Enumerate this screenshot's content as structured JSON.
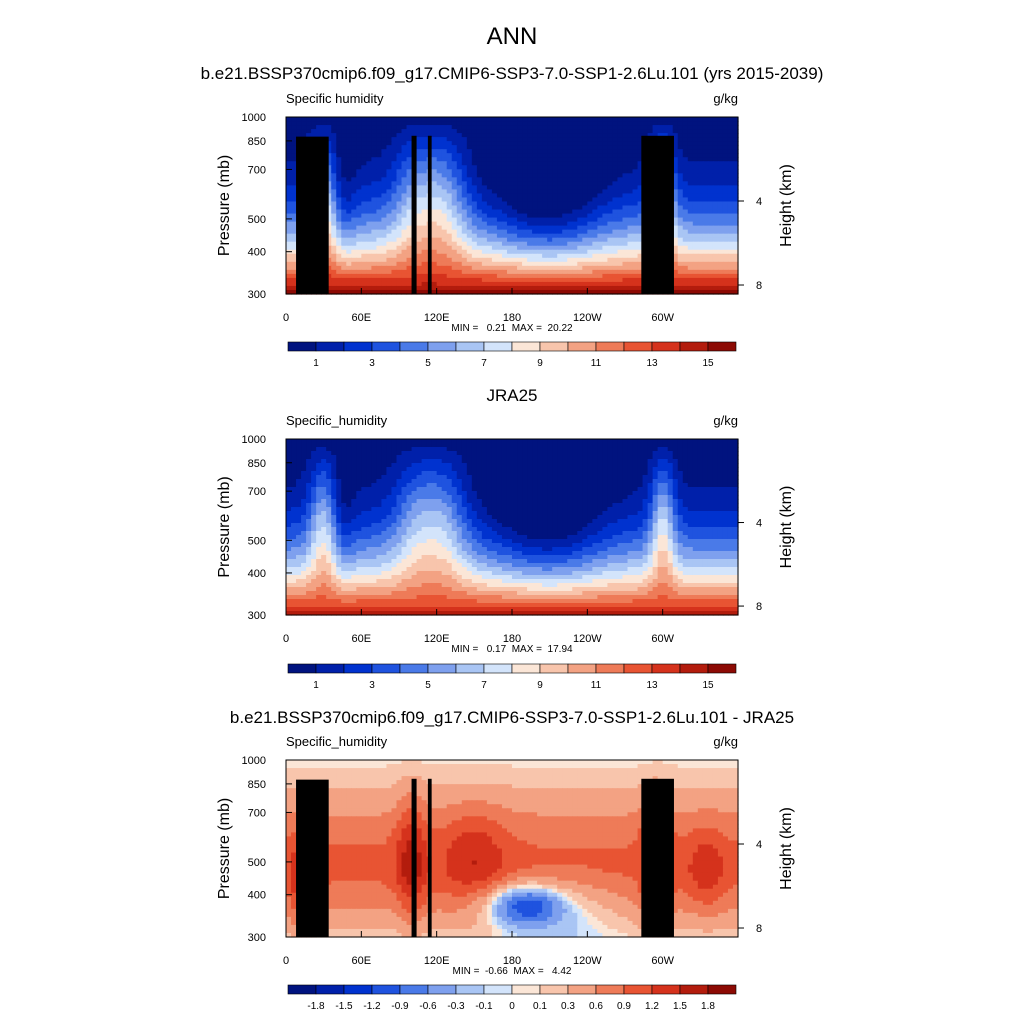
{
  "page": {
    "title": "ANN"
  },
  "chart_data": [
    {
      "type": "heatmap",
      "title": "b.e21.BSSP370cmip6.f09_g17.CMIP6-SSP3-7.0-SSP1-2.6Lu.101 (yrs 2015-2039)",
      "variable": "Specific humidity",
      "units": "g/kg",
      "ylabel": "Pressure (mb)",
      "y2label": "Height (km)",
      "x_ticks": [
        "0",
        "60E",
        "120E",
        "180",
        "120W",
        "60W"
      ],
      "y_ticks": [
        300,
        400,
        500,
        700,
        850,
        1000
      ],
      "y2_ticks": [
        8,
        4
      ],
      "ylim": [
        1000,
        300
      ],
      "stats": "MIN =   0.21  MAX =  20.22",
      "min": 0.21,
      "max": 20.22,
      "colorbar": {
        "labels": [
          "1",
          "3",
          "5",
          "7",
          "9",
          "11",
          "13",
          "15"
        ],
        "colors": [
          "#00137f",
          "#0020aa",
          "#0032cf",
          "#1f53df",
          "#4a7ae8",
          "#7ea0ee",
          "#a9c5f4",
          "#d3e4fb",
          "#fbe6d7",
          "#f8c5ac",
          "#f3a283",
          "#ee7b58",
          "#e85433",
          "#d5321c",
          "#b31c0d",
          "#8c0a04"
        ]
      }
    },
    {
      "type": "heatmap",
      "title": "JRA25",
      "variable": "Specific_humidity",
      "units": "g/kg",
      "ylabel": "Pressure (mb)",
      "y2label": "Height (km)",
      "x_ticks": [
        "0",
        "60E",
        "120E",
        "180",
        "120W",
        "60W"
      ],
      "y_ticks": [
        300,
        400,
        500,
        700,
        850,
        1000
      ],
      "y2_ticks": [
        8,
        4
      ],
      "ylim": [
        1000,
        300
      ],
      "stats": "MIN =   0.17  MAX =  17.94",
      "min": 0.17,
      "max": 17.94,
      "colorbar": {
        "labels": [
          "1",
          "3",
          "5",
          "7",
          "9",
          "11",
          "13",
          "15"
        ],
        "colors": [
          "#00137f",
          "#0020aa",
          "#0032cf",
          "#1f53df",
          "#4a7ae8",
          "#7ea0ee",
          "#a9c5f4",
          "#d3e4fb",
          "#fbe6d7",
          "#f8c5ac",
          "#f3a283",
          "#ee7b58",
          "#e85433",
          "#d5321c",
          "#b31c0d",
          "#8c0a04"
        ]
      }
    },
    {
      "type": "heatmap",
      "title": "b.e21.BSSP370cmip6.f09_g17.CMIP6-SSP3-7.0-SSP1-2.6Lu.101 - JRA25",
      "variable": "Specific_humidity",
      "units": "g/kg",
      "ylabel": "Pressure (mb)",
      "y2label": "Height (km)",
      "x_ticks": [
        "0",
        "60E",
        "120E",
        "180",
        "120W",
        "60W"
      ],
      "y_ticks": [
        300,
        400,
        500,
        700,
        850,
        1000
      ],
      "y2_ticks": [
        8,
        4
      ],
      "ylim": [
        1000,
        300
      ],
      "stats": "MIN =  -0.66  MAX =   4.42",
      "min": -0.66,
      "max": 4.42,
      "colorbar": {
        "labels": [
          "-1.8",
          "-1.5",
          "-1.2",
          "-0.9",
          "-0.6",
          "-0.3",
          "-0.1",
          "0",
          "0.1",
          "0.3",
          "0.6",
          "0.9",
          "1.2",
          "1.5",
          "1.8"
        ],
        "colors": [
          "#00137f",
          "#0020aa",
          "#0032cf",
          "#1f53df",
          "#4a7ae8",
          "#7ea0ee",
          "#a9c5f4",
          "#d3e4fb",
          "#fbe6d7",
          "#f8c5ac",
          "#f3a283",
          "#ee7b58",
          "#e85433",
          "#d5321c",
          "#b31c0d",
          "#8c0a04"
        ]
      }
    }
  ]
}
